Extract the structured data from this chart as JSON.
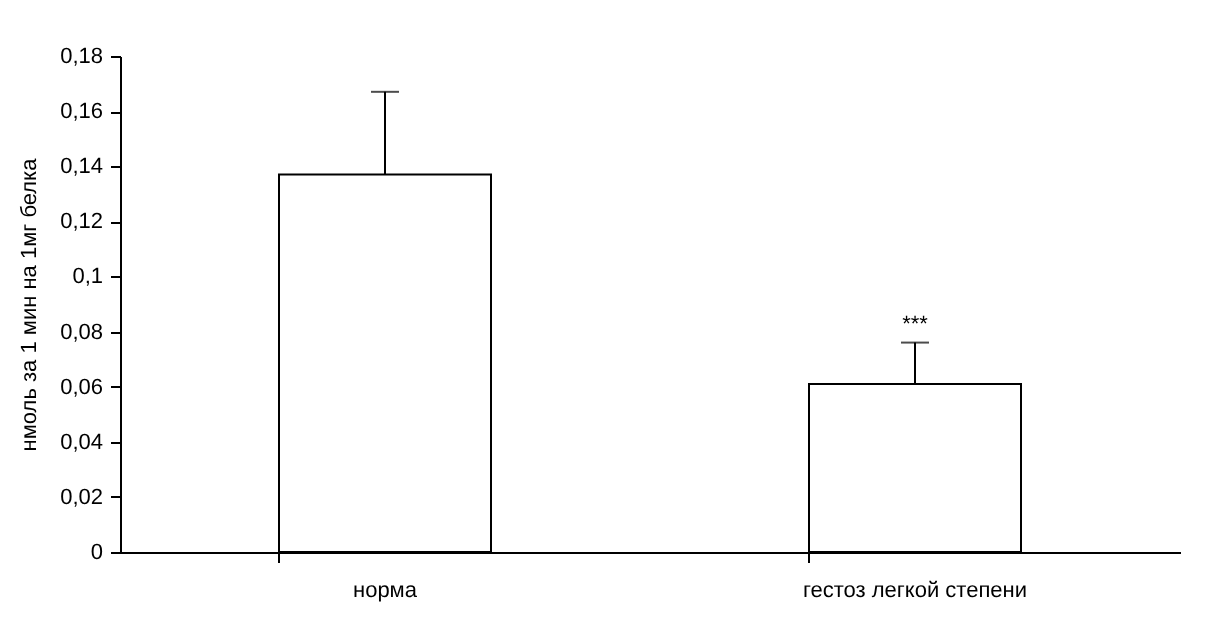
{
  "chart_data": {
    "type": "bar",
    "ylabel": "нмоль за 1 мин на 1мг белка",
    "categories": [
      "норма",
      "гестоз легкой степени"
    ],
    "values": [
      0.137,
      0.061
    ],
    "color": "#ffffff",
    "errors": [
      [
        0.137,
        0.167
      ],
      [
        0.061,
        0.076
      ]
    ],
    "ylim": [
      0,
      0.18
    ],
    "yticks": [
      0,
      {
        "value": 0.02,
        "label": "0,02"
      },
      {
        "value": 0.04,
        "label": "0,04"
      },
      {
        "value": 0.06,
        "label": "0,06"
      },
      {
        "value": 0.08,
        "label": "0,08"
      },
      {
        "value": 0.1,
        "label": "0,1"
      },
      {
        "value": 0.12,
        "label": "0,12"
      },
      {
        "value": 0.14,
        "label": "0,14"
      },
      {
        "value": 0.16,
        "label": "0,16"
      },
      {
        "value": 0.18,
        "label": "0,18"
      }
    ],
    "annotations": [
      {
        "text": "***",
        "x": "гестоз легкой степени",
        "y": 0.076
      }
    ],
    "grid": false
  }
}
